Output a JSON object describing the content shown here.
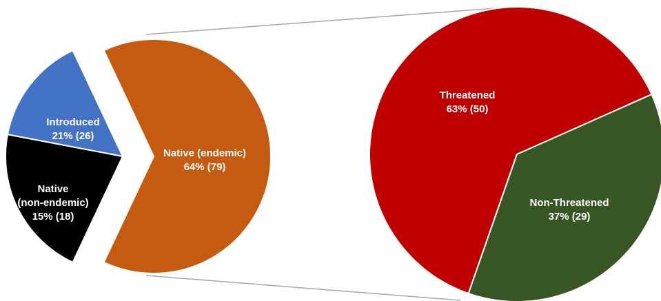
{
  "chart_data": [
    {
      "type": "pie",
      "title": "",
      "slices": [
        {
          "label_lines": [
            "Introduced",
            "21% (26)"
          ],
          "percent": 21,
          "count": 26,
          "color": "#000000"
        },
        {
          "label_lines": [
            "Native",
            "(non-endemic)",
            "15% (18)"
          ],
          "percent": 15,
          "count": 18,
          "color": "#4472c4"
        },
        {
          "label_lines": [
            "Native (endemic)",
            "64% (79)"
          ],
          "percent": 64,
          "count": 79,
          "color": "#c55a11",
          "exploded": true
        }
      ]
    },
    {
      "type": "pie",
      "title": "",
      "breakdown_of": "Native (endemic)",
      "slices": [
        {
          "label_lines": [
            "Threatened",
            "63% (50)"
          ],
          "percent": 63,
          "count": 50,
          "color": "#c00000"
        },
        {
          "label_lines": [
            "Non-Threatened",
            "37% (29)"
          ],
          "percent": 37,
          "count": 29,
          "color": "#375623"
        }
      ]
    }
  ]
}
